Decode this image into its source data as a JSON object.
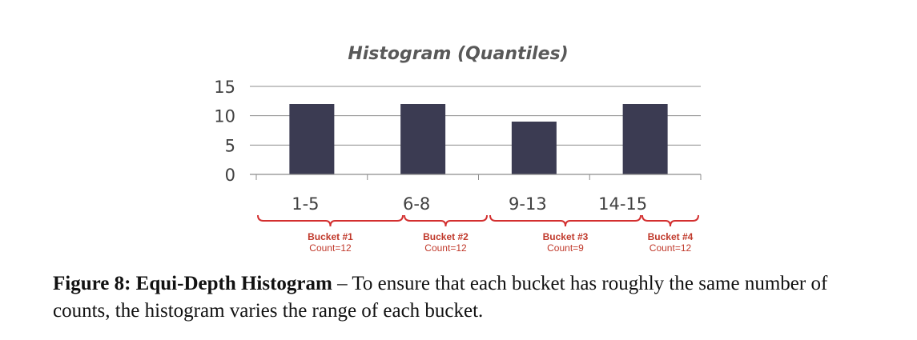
{
  "chart_data": {
    "type": "bar",
    "title": "Histogram (Quantiles)",
    "categories": [
      "1-5",
      "6-8",
      "9-13",
      "14-15"
    ],
    "values": [
      12,
      12,
      9,
      12
    ],
    "ylim": [
      0,
      15
    ],
    "yticks": [
      "0",
      "5",
      "10",
      "15"
    ],
    "grid": true,
    "bar_color": "#3b3b52",
    "buckets": [
      {
        "name": "Bucket #1",
        "count": "Count=12"
      },
      {
        "name": "Bucket #2",
        "count": "Count=12"
      },
      {
        "name": "Bucket #3",
        "count": "Count=9"
      },
      {
        "name": "Bucket #4",
        "count": "Count=12"
      }
    ],
    "annotation_color": "#d32f2f"
  },
  "caption": {
    "label": "Figure 8: Equi-Depth Histogram",
    "text": " – To ensure that each bucket has roughly the same number of counts, the histogram varies the range of each bucket."
  }
}
